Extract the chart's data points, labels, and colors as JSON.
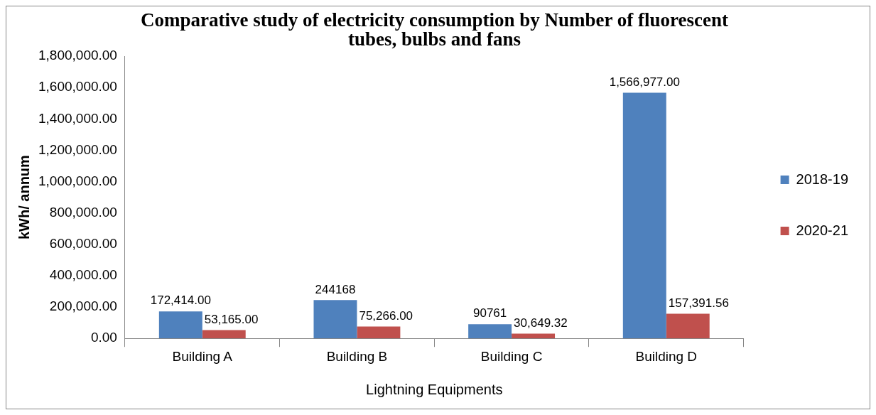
{
  "chart_data": {
    "type": "bar",
    "title": "Comparative study of electricity consumption by Number of fluorescent tubes, bulbs and fans",
    "xlabel": "Lightning Equipments",
    "ylabel": "kWh/ annum",
    "categories": [
      "Building A",
      "Building B",
      "Building C",
      "Building D"
    ],
    "series": [
      {
        "name": "2018-19",
        "color": "#4f81bd",
        "values": [
          172414,
          244168,
          90761,
          1566977
        ],
        "value_labels": [
          "172,414.00",
          "244168",
          "90761",
          "1,566,977.00"
        ]
      },
      {
        "name": "2020-21",
        "color": "#c0504d",
        "values": [
          53165,
          75266,
          30649.32,
          157391.56
        ],
        "value_labels": [
          "53,165.00",
          "75,266.00",
          "30,649.32",
          "157,391.56"
        ]
      }
    ],
    "ylim": [
      0,
      1800000
    ],
    "yticks": [
      {
        "value": 0,
        "label": "0.00"
      },
      {
        "value": 200000,
        "label": "200,000.00"
      },
      {
        "value": 400000,
        "label": "400,000.00"
      },
      {
        "value": 600000,
        "label": "600,000.00"
      },
      {
        "value": 800000,
        "label": "800,000.00"
      },
      {
        "value": 1000000,
        "label": "1,000,000.00"
      },
      {
        "value": 1200000,
        "label": "1,200,000.00"
      },
      {
        "value": 1400000,
        "label": "1,400,000.00"
      },
      {
        "value": 1600000,
        "label": "1,600,000.00"
      },
      {
        "value": 1800000,
        "label": "1,800,000.00"
      }
    ],
    "grid": false,
    "legend": "right",
    "data_labels": true
  }
}
